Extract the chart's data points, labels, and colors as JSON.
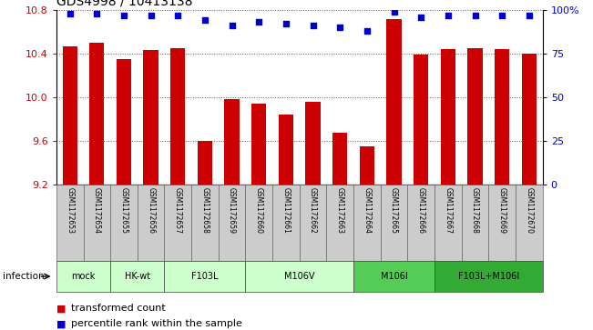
{
  "title": "GDS4998 / 10413138",
  "samples": [
    "GSM1172653",
    "GSM1172654",
    "GSM1172655",
    "GSM1172656",
    "GSM1172657",
    "GSM1172658",
    "GSM1172659",
    "GSM1172660",
    "GSM1172661",
    "GSM1172662",
    "GSM1172663",
    "GSM1172664",
    "GSM1172665",
    "GSM1172666",
    "GSM1172667",
    "GSM1172668",
    "GSM1172669",
    "GSM1172670"
  ],
  "bar_values": [
    10.47,
    10.5,
    10.35,
    10.43,
    10.45,
    9.6,
    9.98,
    9.94,
    9.84,
    9.96,
    9.68,
    9.55,
    10.72,
    10.39,
    10.44,
    10.45,
    10.44,
    10.4
  ],
  "percentile_values": [
    98,
    98,
    97,
    97,
    97,
    94,
    91,
    93,
    92,
    91,
    90,
    88,
    99,
    96,
    97,
    97,
    97,
    97
  ],
  "bar_color": "#cc0000",
  "dot_color": "#0000cc",
  "ylim_left": [
    9.2,
    10.8
  ],
  "ylim_right": [
    0,
    100
  ],
  "yticks_left": [
    9.2,
    9.6,
    10.0,
    10.4,
    10.8
  ],
  "yticks_right": [
    0,
    25,
    50,
    75,
    100
  ],
  "groups": [
    {
      "label": "mock",
      "start": 0,
      "end": 1,
      "color": "#ccffcc"
    },
    {
      "label": "HK-wt",
      "start": 2,
      "end": 3,
      "color": "#ccffcc"
    },
    {
      "label": "F103L",
      "start": 4,
      "end": 6,
      "color": "#ccffcc"
    },
    {
      "label": "M106V",
      "start": 7,
      "end": 10,
      "color": "#ccffcc"
    },
    {
      "label": "M106I",
      "start": 11,
      "end": 13,
      "color": "#55cc55"
    },
    {
      "label": "F103L+M106I",
      "start": 14,
      "end": 17,
      "color": "#33aa33"
    }
  ],
  "infection_label": "infection",
  "legend1_label": "transformed count",
  "legend2_label": "percentile rank within the sample",
  "sample_box_color": "#cccccc"
}
